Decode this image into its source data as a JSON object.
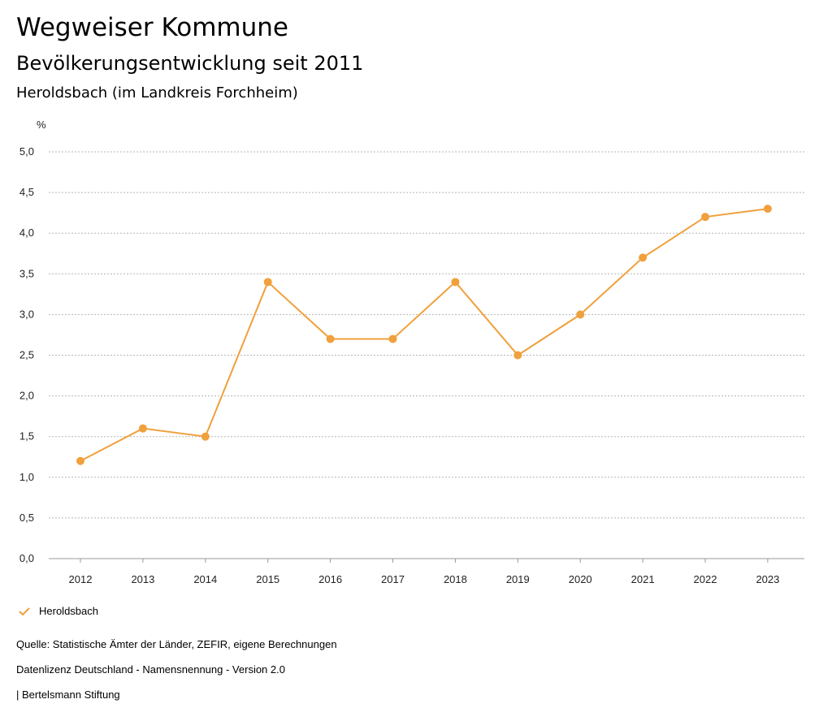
{
  "header": {
    "title": "Wegweiser Kommune",
    "subtitle": "Bevölkerungsentwicklung seit 2011",
    "region": "Heroldsbach (im Landkreis Forchheim)"
  },
  "chart_data": {
    "type": "line",
    "title": "Bevölkerungsentwicklung seit 2011",
    "xlabel": "",
    "ylabel": "%",
    "categories": [
      "2012",
      "2013",
      "2014",
      "2015",
      "2016",
      "2017",
      "2018",
      "2019",
      "2020",
      "2021",
      "2022",
      "2023"
    ],
    "series": [
      {
        "name": "Heroldsbach",
        "color": "#f0a03c",
        "values": [
          1.2,
          1.6,
          1.5,
          3.4,
          2.7,
          2.7,
          3.4,
          2.5,
          3.0,
          3.7,
          4.2,
          4.3
        ]
      }
    ],
    "ylim": [
      0,
      5
    ],
    "yticks": [
      "0,0",
      "0,5",
      "1,0",
      "1,5",
      "2,0",
      "2,5",
      "3,0",
      "3,5",
      "4,0",
      "4,5",
      "5,0"
    ],
    "grid": true,
    "legend": "bottom-left"
  },
  "legend": {
    "label": "Heroldsbach",
    "icon": "check-icon"
  },
  "footer": {
    "source": "Quelle: Statistische Ämter der Länder, ZEFIR, eigene Berechnungen",
    "license": "Datenlizenz Deutschland - Namensnennung - Version 2.0",
    "publisher": "| Bertelsmann Stiftung"
  }
}
